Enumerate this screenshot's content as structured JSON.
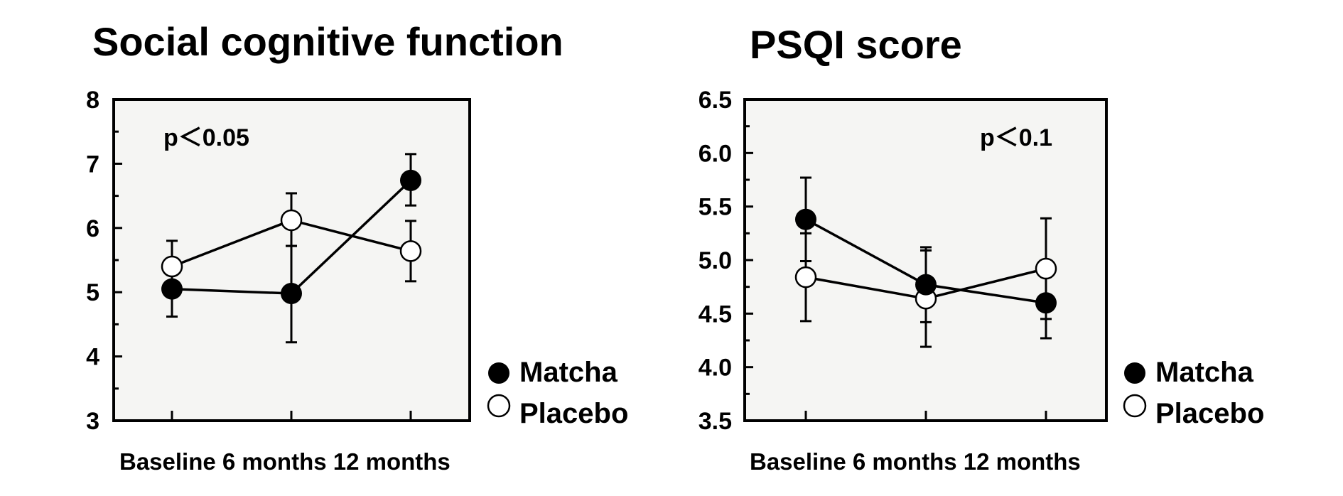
{
  "chart_data": [
    {
      "type": "line",
      "title": "Social cognitive function",
      "annotation": "p＜0.05",
      "categories": [
        "Baseline",
        "6 months",
        "12 months"
      ],
      "xlabel_text": "Baseline  6 months  12 months",
      "ylim": [
        3,
        8
      ],
      "yticks": [
        3,
        4,
        5,
        6,
        7,
        8
      ],
      "ytick_labels": [
        "3",
        "4",
        "5",
        "6",
        "7",
        "8"
      ],
      "series": [
        {
          "name": "Matcha",
          "marker": "filled",
          "values": [
            5.05,
            4.98,
            6.74
          ],
          "err_low": [
            4.62,
            4.22,
            6.35
          ],
          "err_high": [
            5.45,
            5.72,
            7.15
          ]
        },
        {
          "name": "Placebo",
          "marker": "open",
          "values": [
            5.4,
            6.12,
            5.64
          ],
          "err_low": [
            5.0,
            5.72,
            5.17
          ],
          "err_high": [
            5.8,
            6.54,
            6.11
          ]
        }
      ],
      "legend": "right-bottom"
    },
    {
      "type": "line",
      "title": "PSQI score",
      "annotation": "p＜0.1",
      "categories": [
        "Baseline",
        "6 months",
        "12 months"
      ],
      "xlabel_text": "Baseline  6 months  12 months",
      "ylim": [
        3.5,
        6.5
      ],
      "yticks": [
        3.5,
        4.0,
        4.5,
        5.0,
        5.5,
        6.0,
        6.5
      ],
      "ytick_labels": [
        "3.5",
        "4.0",
        "4.5",
        "5.0",
        "5.5",
        "6.0",
        "6.5"
      ],
      "series": [
        {
          "name": "Matcha",
          "marker": "filled",
          "values": [
            5.38,
            4.77,
            4.6
          ],
          "err_low": [
            4.99,
            4.42,
            4.27
          ],
          "err_high": [
            5.77,
            5.12,
            4.93
          ]
        },
        {
          "name": "Placebo",
          "marker": "open",
          "values": [
            4.84,
            4.64,
            4.92
          ],
          "err_low": [
            4.43,
            4.19,
            4.45
          ],
          "err_high": [
            5.25,
            5.09,
            5.39
          ]
        }
      ],
      "legend": "right-bottom"
    }
  ],
  "colors": {
    "plot_background": "#f5f5f3",
    "ink": "#000000",
    "marker_open_fill": "#ffffff"
  }
}
